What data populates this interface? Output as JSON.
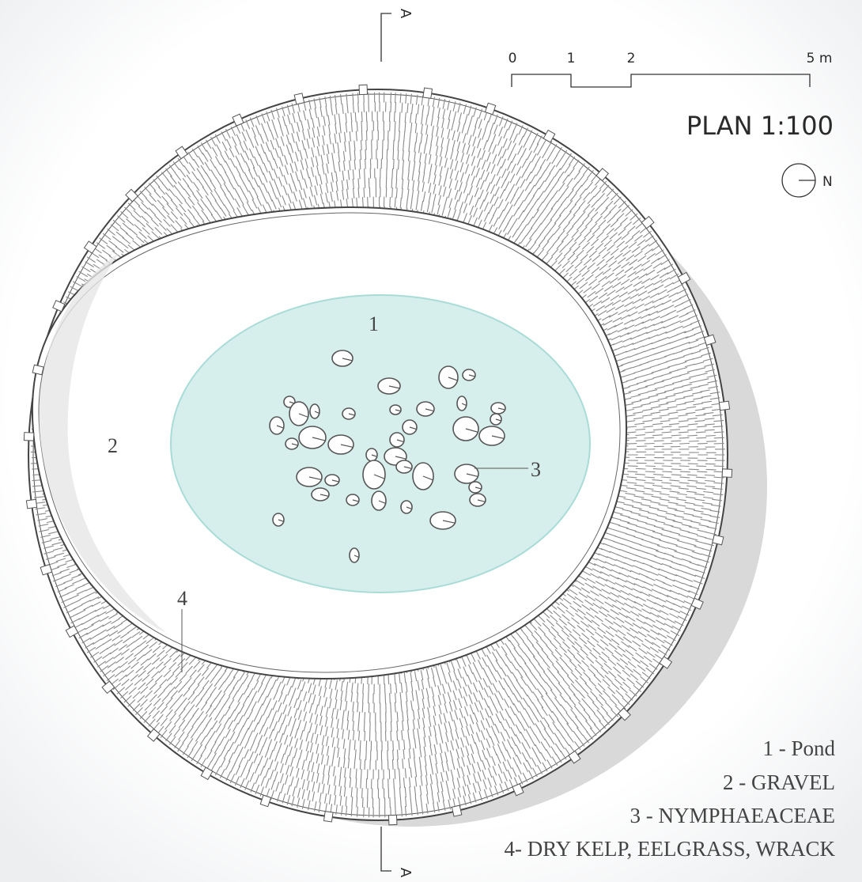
{
  "section_marker": {
    "top": "A",
    "bottom": "A"
  },
  "scale_bar": {
    "ticks": [
      "0",
      "1",
      "2",
      "5 m"
    ]
  },
  "title": "PLAN 1:100",
  "north_label": "N",
  "tags": {
    "pond": "1",
    "gravel": "2",
    "lilies": "3",
    "kelp": "4"
  },
  "legend": [
    "1 - Pond",
    "2 - GRAVEL",
    "3 - NYMPHAEACEAE",
    "4- DRY KELP, EELGRASS, WRACK"
  ],
  "colors": {
    "pond_fill": "#d6eeec",
    "pond_edge": "#a9dcd7",
    "shadow": "#d9d9d9",
    "ink": "#555555",
    "hatch": "#8a8a8a"
  },
  "icons": {
    "north": "north-arrow-icon",
    "lily": "lily-pad-icon"
  }
}
